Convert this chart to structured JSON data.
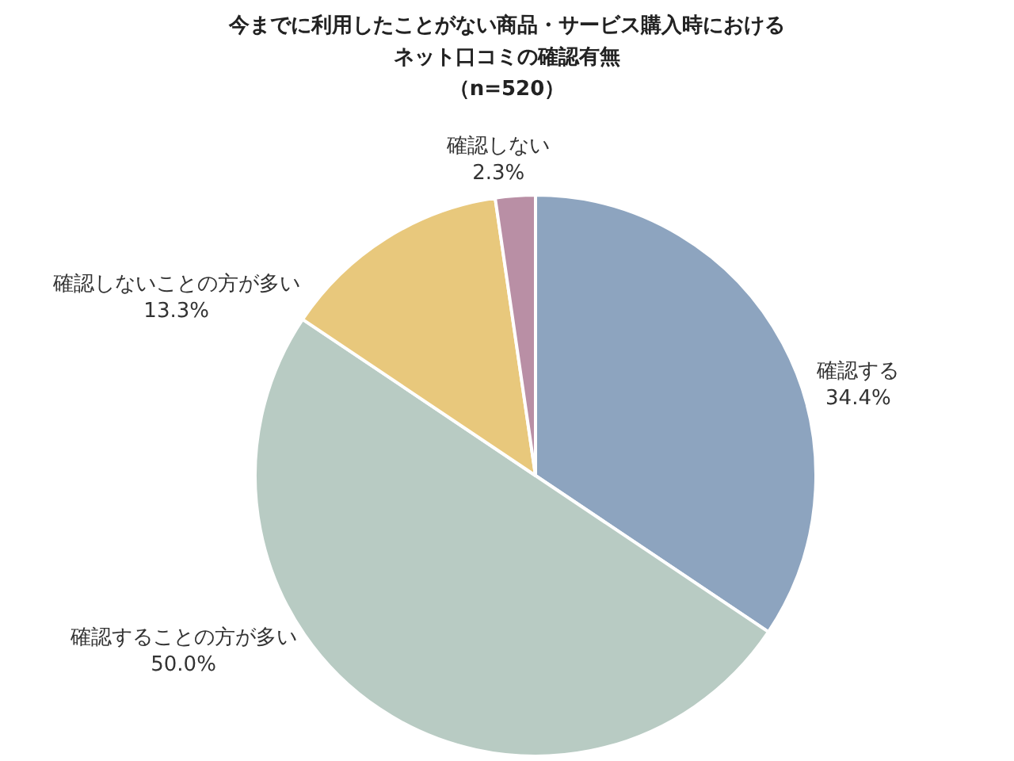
{
  "chart_data": {
    "type": "pie",
    "title": "今までに利用したことがない商品・サービス購入時におけるネット口コミの確認有無",
    "subtitle": "（n=520）",
    "categories": [
      "確認する",
      "確認することの方が多い",
      "確認しないことの方が多い",
      "確認しない"
    ],
    "values": [
      34.4,
      50.0,
      13.3,
      2.3
    ],
    "colors": [
      "#8da4bf",
      "#b8cbc3",
      "#e8c87c",
      "#b98fa5"
    ],
    "value_labels": [
      "34.4%",
      "50.0%",
      "13.3%",
      "2.3%"
    ]
  }
}
